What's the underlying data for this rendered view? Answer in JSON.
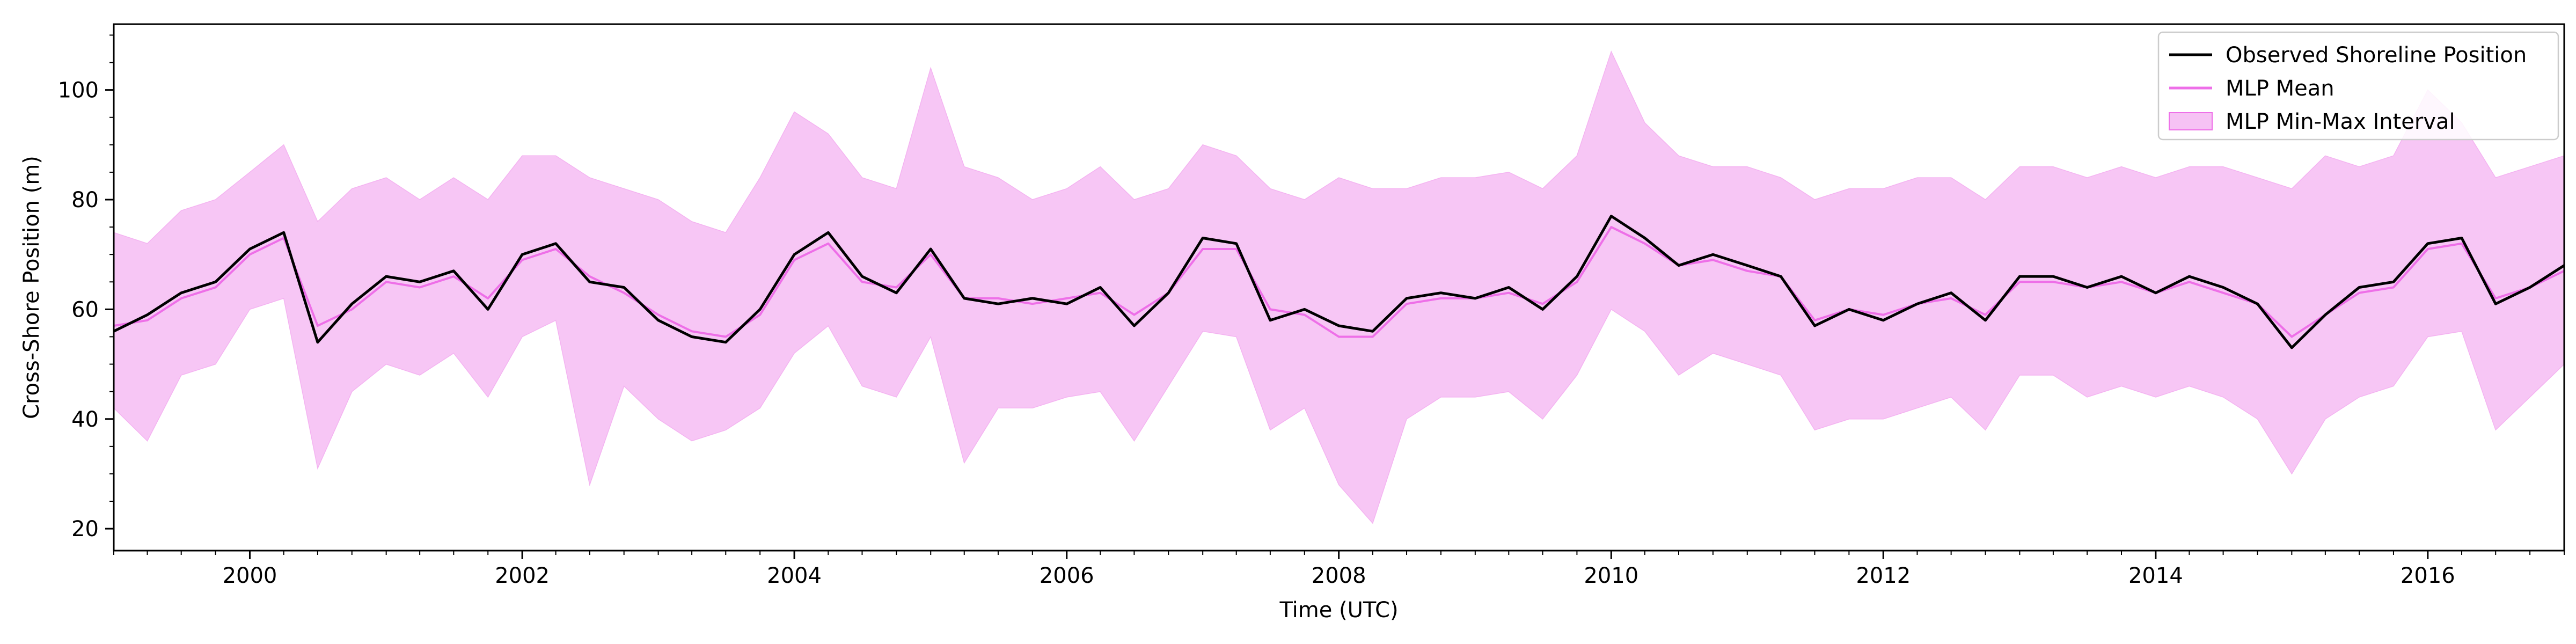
{
  "chart_data": {
    "type": "line",
    "title": "",
    "xlabel": "Time (UTC)",
    "ylabel": "Cross-Shore Position (m)",
    "xlim": [
      "1999-01-01",
      "2017-01-01"
    ],
    "ylim": [
      16,
      112
    ],
    "x_ticks": [
      {
        "date": "2000-01-01",
        "label": "2000"
      },
      {
        "date": "2002-01-01",
        "label": "2002"
      },
      {
        "date": "2004-01-01",
        "label": "2004"
      },
      {
        "date": "2006-01-01",
        "label": "2006"
      },
      {
        "date": "2008-01-01",
        "label": "2008"
      },
      {
        "date": "2010-01-01",
        "label": "2010"
      },
      {
        "date": "2012-01-01",
        "label": "2012"
      },
      {
        "date": "2014-01-01",
        "label": "2014"
      },
      {
        "date": "2016-01-01",
        "label": "2016"
      }
    ],
    "y_ticks": [
      {
        "value": 20,
        "label": "20"
      },
      {
        "value": 40,
        "label": "40"
      },
      {
        "value": 60,
        "label": "60"
      },
      {
        "value": 80,
        "label": "80"
      },
      {
        "value": 100,
        "label": "100"
      }
    ],
    "grid": false,
    "legend": "top-right",
    "series": [
      {
        "name": "Observed Shoreline Position",
        "kind": "line",
        "color": "#000000",
        "x": [
          "1999-01-01",
          "1999-04-01",
          "1999-07-01",
          "1999-10-01",
          "2000-01-01",
          "2000-04-01",
          "2000-07-01",
          "2000-10-01",
          "2001-01-01",
          "2001-04-01",
          "2001-07-01",
          "2001-10-01",
          "2002-01-01",
          "2002-04-01",
          "2002-07-01",
          "2002-10-01",
          "2003-01-01",
          "2003-04-01",
          "2003-07-01",
          "2003-10-01",
          "2004-01-01",
          "2004-04-01",
          "2004-07-01",
          "2004-10-01",
          "2005-01-01",
          "2005-04-01",
          "2005-07-01",
          "2005-10-01",
          "2006-01-01",
          "2006-04-01",
          "2006-07-01",
          "2006-10-01",
          "2007-01-01",
          "2007-04-01",
          "2007-07-01",
          "2007-10-01",
          "2008-01-01",
          "2008-04-01",
          "2008-07-01",
          "2008-10-01",
          "2009-01-01",
          "2009-04-01",
          "2009-07-01",
          "2009-10-01",
          "2010-01-01",
          "2010-04-01",
          "2010-07-01",
          "2010-10-01",
          "2011-01-01",
          "2011-04-01",
          "2011-07-01",
          "2011-10-01",
          "2012-01-01",
          "2012-04-01",
          "2012-07-01",
          "2012-10-01",
          "2013-01-01",
          "2013-04-01",
          "2013-07-01",
          "2013-10-01",
          "2014-01-01",
          "2014-04-01",
          "2014-07-01",
          "2014-10-01",
          "2015-01-01",
          "2015-04-01",
          "2015-07-01",
          "2015-10-01",
          "2016-01-01",
          "2016-04-01",
          "2016-07-01",
          "2016-10-01",
          "2017-01-01"
        ],
        "values": [
          56,
          59,
          63,
          65,
          71,
          74,
          54,
          61,
          66,
          65,
          67,
          60,
          70,
          72,
          65,
          64,
          58,
          55,
          54,
          60,
          70,
          74,
          66,
          63,
          71,
          62,
          61,
          62,
          61,
          64,
          57,
          63,
          73,
          72,
          58,
          60,
          57,
          56,
          62,
          63,
          62,
          64,
          60,
          66,
          77,
          73,
          68,
          70,
          68,
          66,
          57,
          60,
          58,
          61,
          63,
          58,
          66,
          66,
          64,
          66,
          63,
          66,
          64,
          61,
          53,
          59,
          64,
          65,
          72,
          73,
          61,
          64,
          68
        ]
      },
      {
        "name": "MLP Mean",
        "kind": "line",
        "color": "#ee6fe8",
        "x": [
          "1999-01-01",
          "1999-04-01",
          "1999-07-01",
          "1999-10-01",
          "2000-01-01",
          "2000-04-01",
          "2000-07-01",
          "2000-10-01",
          "2001-01-01",
          "2001-04-01",
          "2001-07-01",
          "2001-10-01",
          "2002-01-01",
          "2002-04-01",
          "2002-07-01",
          "2002-10-01",
          "2003-01-01",
          "2003-04-01",
          "2003-07-01",
          "2003-10-01",
          "2004-01-01",
          "2004-04-01",
          "2004-07-01",
          "2004-10-01",
          "2005-01-01",
          "2005-04-01",
          "2005-07-01",
          "2005-10-01",
          "2006-01-01",
          "2006-04-01",
          "2006-07-01",
          "2006-10-01",
          "2007-01-01",
          "2007-04-01",
          "2007-07-01",
          "2007-10-01",
          "2008-01-01",
          "2008-04-01",
          "2008-07-01",
          "2008-10-01",
          "2009-01-01",
          "2009-04-01",
          "2009-07-01",
          "2009-10-01",
          "2010-01-01",
          "2010-04-01",
          "2010-07-01",
          "2010-10-01",
          "2011-01-01",
          "2011-04-01",
          "2011-07-01",
          "2011-10-01",
          "2012-01-01",
          "2012-04-01",
          "2012-07-01",
          "2012-10-01",
          "2013-01-01",
          "2013-04-01",
          "2013-07-01",
          "2013-10-01",
          "2014-01-01",
          "2014-04-01",
          "2014-07-01",
          "2014-10-01",
          "2015-01-01",
          "2015-04-01",
          "2015-07-01",
          "2015-10-01",
          "2016-01-01",
          "2016-04-01",
          "2016-07-01",
          "2016-10-01",
          "2017-01-01"
        ],
        "values": [
          57,
          58,
          62,
          64,
          70,
          73,
          57,
          60,
          65,
          64,
          66,
          62,
          69,
          71,
          66,
          63,
          59,
          56,
          55,
          59,
          69,
          72,
          65,
          64,
          70,
          62,
          62,
          61,
          62,
          63,
          59,
          63,
          71,
          71,
          60,
          59,
          55,
          55,
          61,
          62,
          62,
          63,
          61,
          65,
          75,
          72,
          68,
          69,
          67,
          66,
          58,
          60,
          59,
          61,
          62,
          59,
          65,
          65,
          64,
          65,
          63,
          65,
          63,
          61,
          55,
          59,
          63,
          64,
          71,
          72,
          62,
          64,
          67
        ]
      },
      {
        "name": "MLP Min-Max Interval",
        "kind": "band",
        "color": "#f4b3f1",
        "x": [
          "1999-01-01",
          "1999-04-01",
          "1999-07-01",
          "1999-10-01",
          "2000-01-01",
          "2000-04-01",
          "2000-07-01",
          "2000-10-01",
          "2001-01-01",
          "2001-04-01",
          "2001-07-01",
          "2001-10-01",
          "2002-01-01",
          "2002-04-01",
          "2002-07-01",
          "2002-10-01",
          "2003-01-01",
          "2003-04-01",
          "2003-07-01",
          "2003-10-01",
          "2004-01-01",
          "2004-04-01",
          "2004-07-01",
          "2004-10-01",
          "2005-01-01",
          "2005-04-01",
          "2005-07-01",
          "2005-10-01",
          "2006-01-01",
          "2006-04-01",
          "2006-07-01",
          "2006-10-01",
          "2007-01-01",
          "2007-04-01",
          "2007-07-01",
          "2007-10-01",
          "2008-01-01",
          "2008-04-01",
          "2008-07-01",
          "2008-10-01",
          "2009-01-01",
          "2009-04-01",
          "2009-07-01",
          "2009-10-01",
          "2010-01-01",
          "2010-04-01",
          "2010-07-01",
          "2010-10-01",
          "2011-01-01",
          "2011-04-01",
          "2011-07-01",
          "2011-10-01",
          "2012-01-01",
          "2012-04-01",
          "2012-07-01",
          "2012-10-01",
          "2013-01-01",
          "2013-04-01",
          "2013-07-01",
          "2013-10-01",
          "2014-01-01",
          "2014-04-01",
          "2014-07-01",
          "2014-10-01",
          "2015-01-01",
          "2015-04-01",
          "2015-07-01",
          "2015-10-01",
          "2016-01-01",
          "2016-04-01",
          "2016-07-01",
          "2016-10-01",
          "2017-01-01"
        ],
        "lower": [
          42,
          36,
          48,
          50,
          60,
          62,
          31,
          45,
          50,
          48,
          52,
          44,
          55,
          58,
          28,
          46,
          40,
          36,
          38,
          42,
          52,
          57,
          46,
          44,
          55,
          32,
          42,
          42,
          44,
          45,
          36,
          46,
          56,
          55,
          38,
          42,
          28,
          21,
          40,
          44,
          44,
          45,
          40,
          48,
          60,
          56,
          48,
          52,
          50,
          48,
          38,
          40,
          40,
          42,
          44,
          38,
          48,
          48,
          44,
          46,
          44,
          46,
          44,
          40,
          30,
          40,
          44,
          46,
          55,
          56,
          38,
          44,
          50
        ],
        "upper": [
          74,
          72,
          78,
          80,
          85,
          90,
          76,
          82,
          84,
          80,
          84,
          80,
          88,
          88,
          84,
          82,
          80,
          76,
          74,
          84,
          96,
          92,
          84,
          82,
          104,
          86,
          84,
          80,
          82,
          86,
          80,
          82,
          90,
          88,
          82,
          80,
          84,
          82,
          82,
          84,
          84,
          85,
          82,
          88,
          107,
          94,
          88,
          86,
          86,
          84,
          80,
          82,
          82,
          84,
          84,
          80,
          86,
          86,
          84,
          86,
          84,
          86,
          86,
          84,
          82,
          88,
          86,
          88,
          100,
          94,
          84,
          86,
          88
        ]
      }
    ]
  }
}
